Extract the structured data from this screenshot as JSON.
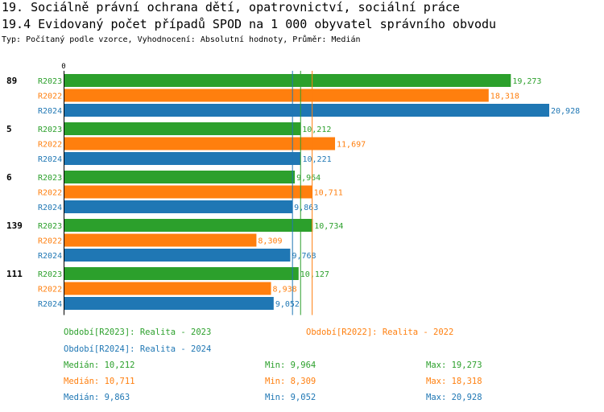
{
  "title": "19. Sociálně právní ochrana dětí, opatrovnictví, sociální práce",
  "subtitle": "19.4 Evidovaný počet případů SPOD na 1 000 obyvatel správního obvodu",
  "type_line": "Typ: Počítaný podle vzorce, Vyhodnocení: Absolutní hodnoty, Průměr: Medián",
  "colors": {
    "R2023": "#2ca02c",
    "R2022": "#ff7f0e",
    "R2024": "#1f77b4"
  },
  "chart_data": {
    "type": "bar",
    "orientation": "horizontal",
    "axis_zero_label": "0",
    "categories": [
      "89",
      "5",
      "6",
      "139",
      "111"
    ],
    "series": [
      {
        "name": "R2023",
        "values": [
          19.273,
          10.212,
          9.964,
          10.734,
          10.127
        ],
        "labels": [
          "19,273",
          "10,212",
          "9,964",
          "10,734",
          "10,127"
        ]
      },
      {
        "name": "R2022",
        "values": [
          18.318,
          11.697,
          10.711,
          8.309,
          8.938
        ],
        "labels": [
          "18,318",
          "11,697",
          "10,711",
          "8,309",
          "8,938"
        ]
      },
      {
        "name": "R2024",
        "values": [
          20.928,
          10.221,
          9.863,
          9.768,
          9.052
        ],
        "labels": [
          "20,928",
          "10,221",
          "9,863",
          "9,768",
          "9,052"
        ]
      }
    ],
    "xlim": [
      0,
      20.928
    ],
    "medians": {
      "R2023": 10.212,
      "R2022": 10.711,
      "R2024": 9.863
    }
  },
  "legend": {
    "r2023": "Období[R2023]: Realita - 2023",
    "r2022": "Období[R2022]: Realita - 2022",
    "r2024": "Období[R2024]: Realita - 2024"
  },
  "stats": [
    {
      "series": "R2023",
      "median": "Medián: 10,212",
      "min": "Min: 9,964",
      "max": "Max: 19,273"
    },
    {
      "series": "R2022",
      "median": "Medián: 10,711",
      "min": "Min: 8,309",
      "max": "Max: 18,318"
    },
    {
      "series": "R2024",
      "median": "Medián: 9,863",
      "min": "Min: 9,052",
      "max": "Max: 20,928"
    }
  ]
}
